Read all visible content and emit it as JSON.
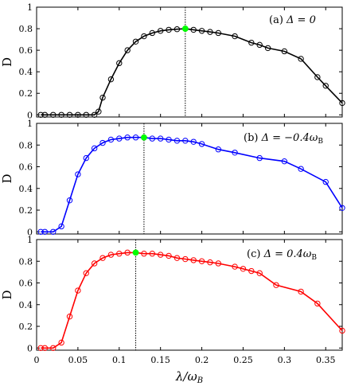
{
  "chart_data": [
    {
      "type": "line",
      "panel": "(a)",
      "annotation": {
        "prefix": "(a) ",
        "math": "Δ = 0"
      },
      "ylabel": "D",
      "xlabel": "",
      "xlim": [
        0,
        0.37
      ],
      "ylim": [
        -0.02,
        1.0
      ],
      "yticks": [
        0,
        0.2,
        0.4,
        0.6,
        0.8,
        1
      ],
      "color": "#000000",
      "highlight_color": "#00ff00",
      "vline_x": 0.18,
      "highlight": {
        "x": 0.18,
        "y": 0.8
      },
      "series": [
        {
          "x": [
            0.005,
            0.01,
            0.02,
            0.03,
            0.04,
            0.05,
            0.06,
            0.07,
            0.075,
            0.08,
            0.09,
            0.1,
            0.11,
            0.12,
            0.13,
            0.14,
            0.15,
            0.16,
            0.17,
            0.18,
            0.19,
            0.2,
            0.21,
            0.22,
            0.24,
            0.26,
            0.27,
            0.28,
            0.3,
            0.32,
            0.34,
            0.35,
            0.37
          ],
          "y": [
            0.0,
            0.0,
            0.0,
            0.0,
            0.0,
            0.0,
            0.0,
            0.0,
            0.03,
            0.16,
            0.33,
            0.48,
            0.6,
            0.68,
            0.73,
            0.76,
            0.78,
            0.79,
            0.795,
            0.8,
            0.79,
            0.78,
            0.77,
            0.76,
            0.73,
            0.67,
            0.65,
            0.62,
            0.59,
            0.52,
            0.35,
            0.27,
            0.11
          ]
        }
      ]
    },
    {
      "type": "line",
      "panel": "(b)",
      "annotation": {
        "prefix": "(b) ",
        "math": "Δ = −0.4ω",
        "sub": "B"
      },
      "ylabel": "D",
      "xlabel": "",
      "xlim": [
        0,
        0.37
      ],
      "ylim": [
        -0.02,
        1.0
      ],
      "yticks": [
        0,
        0.2,
        0.4,
        0.6,
        0.8,
        1
      ],
      "color": "#0000ff",
      "highlight_color": "#00ff00",
      "vline_x": 0.13,
      "highlight": {
        "x": 0.13,
        "y": 0.87
      },
      "series": [
        {
          "x": [
            0.005,
            0.01,
            0.02,
            0.03,
            0.04,
            0.05,
            0.06,
            0.07,
            0.08,
            0.09,
            0.1,
            0.11,
            0.12,
            0.13,
            0.14,
            0.15,
            0.16,
            0.17,
            0.18,
            0.19,
            0.2,
            0.22,
            0.24,
            0.27,
            0.3,
            0.32,
            0.35,
            0.37
          ],
          "y": [
            0.0,
            0.0,
            0.0,
            0.05,
            0.29,
            0.53,
            0.68,
            0.77,
            0.82,
            0.85,
            0.86,
            0.87,
            0.87,
            0.87,
            0.86,
            0.86,
            0.85,
            0.84,
            0.84,
            0.83,
            0.81,
            0.76,
            0.73,
            0.68,
            0.65,
            0.58,
            0.46,
            0.22
          ]
        }
      ]
    },
    {
      "type": "line",
      "panel": "(c)",
      "annotation": {
        "prefix": "(c) ",
        "math": "Δ = 0.4ω",
        "sub": "B"
      },
      "ylabel": "D",
      "xlabel": "λ/ω",
      "xlabel_sub": "B",
      "xlim": [
        0,
        0.37
      ],
      "ylim": [
        -0.02,
        1.0
      ],
      "yticks": [
        0,
        0.2,
        0.4,
        0.6,
        0.8,
        1
      ],
      "xticks": [
        0,
        0.05,
        0.1,
        0.15,
        0.2,
        0.25,
        0.3,
        0.35
      ],
      "color": "#ff0000",
      "highlight_color": "#00ff00",
      "vline_x": 0.12,
      "highlight": {
        "x": 0.12,
        "y": 0.88
      },
      "series": [
        {
          "x": [
            0.005,
            0.01,
            0.02,
            0.03,
            0.04,
            0.05,
            0.06,
            0.07,
            0.08,
            0.09,
            0.1,
            0.11,
            0.12,
            0.13,
            0.14,
            0.15,
            0.16,
            0.17,
            0.18,
            0.19,
            0.2,
            0.21,
            0.22,
            0.24,
            0.25,
            0.26,
            0.27,
            0.29,
            0.32,
            0.34,
            0.37
          ],
          "y": [
            0.0,
            0.0,
            0.0,
            0.05,
            0.29,
            0.53,
            0.69,
            0.78,
            0.83,
            0.86,
            0.87,
            0.88,
            0.88,
            0.87,
            0.87,
            0.86,
            0.85,
            0.83,
            0.82,
            0.81,
            0.8,
            0.79,
            0.78,
            0.75,
            0.73,
            0.71,
            0.69,
            0.58,
            0.52,
            0.41,
            0.16
          ]
        }
      ]
    }
  ]
}
